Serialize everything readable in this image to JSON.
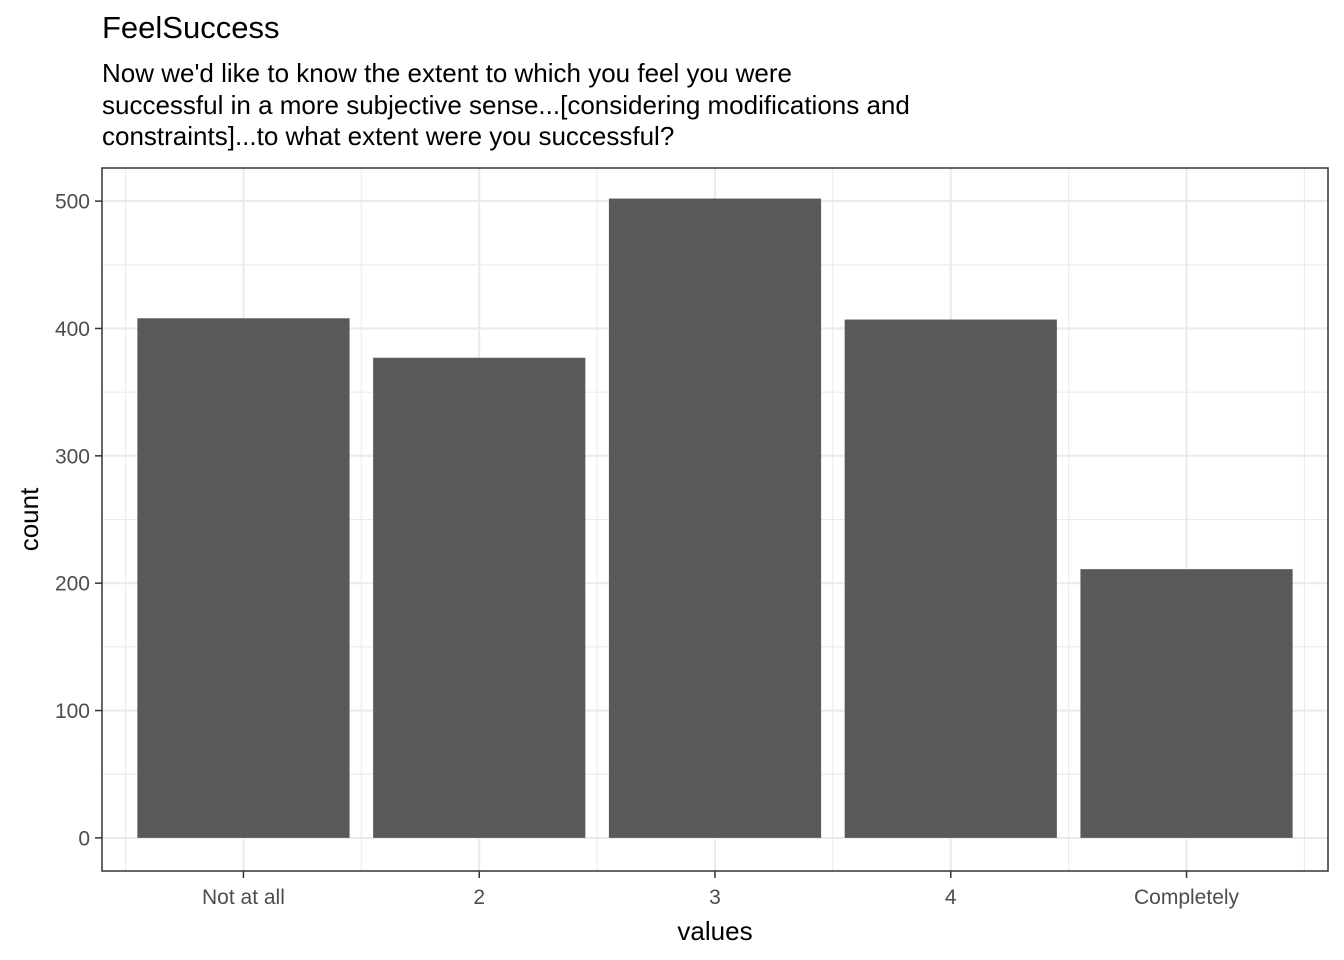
{
  "chart_data": {
    "type": "bar",
    "title": "FeelSuccess",
    "subtitle_lines": [
      "Now we'd like to know the extent to which you feel you were",
      "successful in a more subjective sense...[considering modifications and",
      "constraints]...to what extent were you successful?"
    ],
    "xlabel": "values",
    "ylabel": "count",
    "categories": [
      "Not at all",
      "2",
      "3",
      "4",
      "Completely"
    ],
    "values": [
      408,
      377,
      502,
      407,
      211
    ],
    "ylim": [
      -26,
      526
    ],
    "yticks": [
      0,
      100,
      200,
      300,
      400,
      500
    ],
    "ytick_labels": [
      "0",
      "100",
      "200",
      "300",
      "400",
      "500"
    ],
    "grid": true,
    "bar_color": "#595959",
    "grid_color": "#ebebeb",
    "panel_border_color": "#333333"
  }
}
